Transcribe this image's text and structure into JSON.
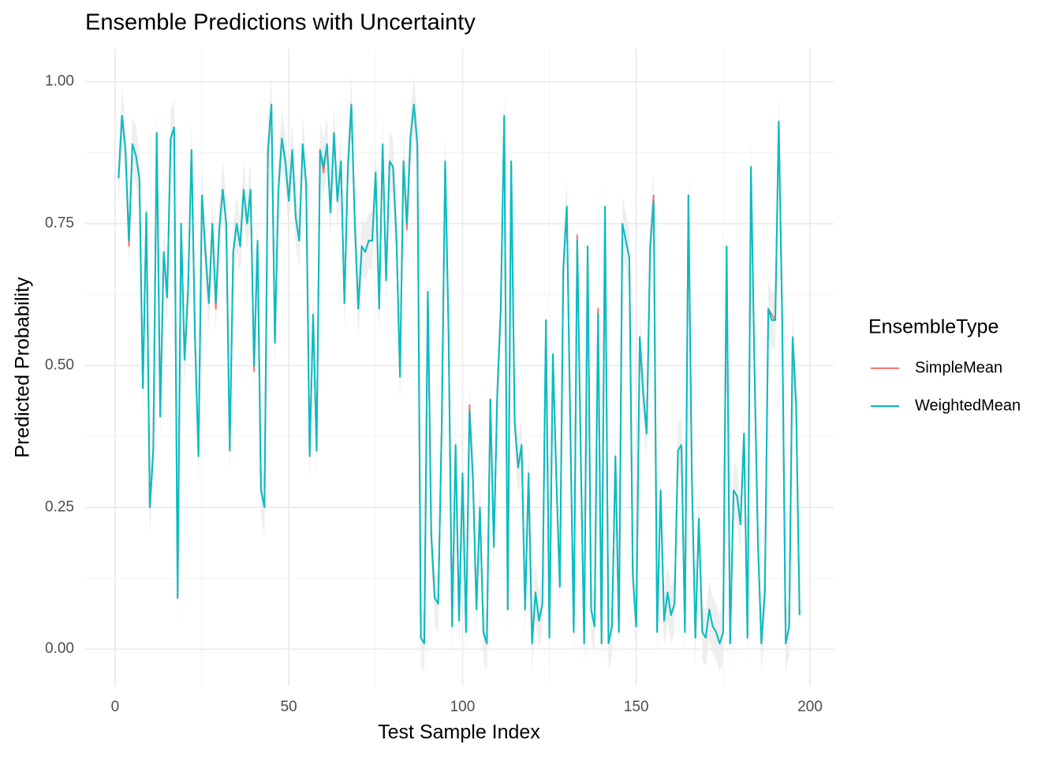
{
  "chart_data": {
    "type": "line",
    "title": "Ensemble Predictions with Uncertainty",
    "x_label": "Test Sample Index",
    "y_label": "Predicted Probability",
    "legend_title": "EnsembleType",
    "legend": "right",
    "grid": true,
    "xlim": [
      -8.6,
      206.8
    ],
    "ylim": [
      -0.065,
      1.058
    ],
    "xticks": [
      0,
      50,
      100,
      150,
      200
    ],
    "xminor": [
      25,
      75,
      125,
      175
    ],
    "yticks": [
      {
        "value": 0,
        "label": "0.00"
      },
      {
        "value": 0.25,
        "label": "0.25"
      },
      {
        "value": 0.5,
        "label": "0.50"
      },
      {
        "value": 0.75,
        "label": "0.75"
      },
      {
        "value": 1,
        "label": "1.00"
      }
    ],
    "yminor": [
      0.125,
      0.375,
      0.625,
      0.875
    ],
    "x": [
      1,
      2,
      3,
      4,
      5,
      6,
      7,
      8,
      9,
      10,
      11,
      12,
      13,
      14,
      15,
      16,
      17,
      18,
      19,
      20,
      21,
      22,
      23,
      24,
      25,
      26,
      27,
      28,
      29,
      30,
      31,
      32,
      33,
      34,
      35,
      36,
      37,
      38,
      39,
      40,
      41,
      42,
      43,
      44,
      45,
      46,
      47,
      48,
      49,
      50,
      51,
      52,
      53,
      54,
      55,
      56,
      57,
      58,
      59,
      60,
      61,
      62,
      63,
      64,
      65,
      66,
      67,
      68,
      69,
      70,
      71,
      72,
      73,
      74,
      75,
      76,
      77,
      78,
      79,
      80,
      81,
      82,
      83,
      84,
      85,
      86,
      87,
      88,
      89,
      90,
      91,
      92,
      93,
      94,
      95,
      96,
      97,
      98,
      99,
      100,
      101,
      102,
      103,
      104,
      105,
      106,
      107,
      108,
      109,
      110,
      111,
      112,
      113,
      114,
      115,
      116,
      117,
      118,
      119,
      120,
      121,
      122,
      123,
      124,
      125,
      126,
      127,
      128,
      129,
      130,
      131,
      132,
      133,
      134,
      135,
      136,
      137,
      138,
      139,
      140,
      141,
      142,
      143,
      144,
      145,
      146,
      147,
      148,
      149,
      150,
      151,
      152,
      153,
      154,
      155,
      156,
      157,
      158,
      159,
      160,
      161,
      162,
      163,
      164,
      165,
      166,
      167,
      168,
      169,
      170,
      171,
      172,
      173,
      174,
      175,
      176,
      177,
      178,
      179,
      180,
      181,
      182,
      183,
      184,
      185,
      186,
      187,
      188,
      189,
      190,
      191,
      192,
      193,
      194,
      195,
      196,
      197
    ],
    "ribbon": {
      "color": "#ebebeb",
      "lower": [
        0.78,
        0.89,
        0.83,
        0.67,
        0.84,
        0.82,
        0.78,
        0.41,
        0.72,
        0.2,
        0.3,
        0.86,
        0.36,
        0.65,
        0.57,
        0.85,
        0.87,
        0.04,
        0.7,
        0.46,
        0.58,
        0.83,
        0.5,
        0.29,
        0.75,
        0.65,
        0.56,
        0.7,
        0.56,
        0.69,
        0.76,
        0.7,
        0.3,
        0.65,
        0.7,
        0.66,
        0.76,
        0.7,
        0.76,
        0.45,
        0.67,
        0.23,
        0.2,
        0.83,
        0.91,
        0.49,
        0.76,
        0.85,
        0.81,
        0.74,
        0.83,
        0.71,
        0.67,
        0.84,
        0.77,
        0.29,
        0.54,
        0.3,
        0.83,
        0.8,
        0.84,
        0.72,
        0.86,
        0.74,
        0.81,
        0.56,
        0.8,
        0.91,
        0.7,
        0.55,
        0.66,
        0.65,
        0.67,
        0.67,
        0.79,
        0.55,
        0.84,
        0.6,
        0.81,
        0.8,
        0.67,
        0.43,
        0.81,
        0.7,
        0.85,
        0.91,
        0.84,
        -0.03,
        -0.04,
        0.58,
        0.15,
        0.04,
        0.03,
        0.34,
        0.81,
        0.5,
        -0.01,
        0.31,
        0.0,
        0.26,
        -0.02,
        0.37,
        0.25,
        0.02,
        0.2,
        -0.02,
        -0.04,
        0.39,
        0.13,
        0.4,
        0.55,
        0.89,
        0.02,
        0.81,
        0.35,
        0.27,
        0.31,
        0.02,
        0.26,
        -0.04,
        0.05,
        0.0,
        0.03,
        0.53,
        -0.03,
        0.47,
        0.25,
        0.06,
        0.62,
        0.73,
        0.35,
        -0.02,
        0.67,
        0.3,
        -0.04,
        0.66,
        0.02,
        -0.01,
        0.54,
        -0.04,
        0.73,
        -0.04,
        -0.01,
        0.29,
        -0.02,
        0.7,
        0.67,
        0.64,
        0.08,
        -0.01,
        0.5,
        0.4,
        0.33,
        0.66,
        0.74,
        -0.02,
        0.23,
        0.0,
        0.05,
        0.01,
        0.03,
        0.3,
        0.31,
        -0.02,
        0.75,
        0.25,
        -0.03,
        0.18,
        -0.02,
        -0.03,
        0.02,
        -0.01,
        -0.02,
        -0.04,
        -0.02,
        0.66,
        -0.04,
        0.23,
        0.22,
        0.17,
        0.33,
        -0.03,
        0.8,
        0.45,
        0.14,
        -0.04,
        0.05,
        0.55,
        0.53,
        0.53,
        0.88,
        0.53,
        -0.04,
        -0.01,
        0.5,
        0.38,
        0.01
      ],
      "upper": [
        0.88,
        0.99,
        0.93,
        0.77,
        0.94,
        0.92,
        0.88,
        0.51,
        0.82,
        0.3,
        0.4,
        0.96,
        0.46,
        0.75,
        0.67,
        0.95,
        0.97,
        0.14,
        0.8,
        0.56,
        0.68,
        0.93,
        0.6,
        0.39,
        0.85,
        0.75,
        0.66,
        0.8,
        0.66,
        0.79,
        0.86,
        0.8,
        0.4,
        0.75,
        0.8,
        0.76,
        0.86,
        0.8,
        0.86,
        0.55,
        0.77,
        0.33,
        0.3,
        0.93,
        1.01,
        0.59,
        0.86,
        0.95,
        0.91,
        0.84,
        0.93,
        0.81,
        0.77,
        0.94,
        0.87,
        0.39,
        0.64,
        0.4,
        0.93,
        0.9,
        0.94,
        0.82,
        0.96,
        0.84,
        0.91,
        0.66,
        0.9,
        1.01,
        0.8,
        0.65,
        0.76,
        0.75,
        0.77,
        0.77,
        0.89,
        0.65,
        0.94,
        0.7,
        0.91,
        0.9,
        0.77,
        0.53,
        0.91,
        0.8,
        0.95,
        1.01,
        0.94,
        0.07,
        0.06,
        0.68,
        0.25,
        0.14,
        0.13,
        0.44,
        0.91,
        0.6,
        0.09,
        0.41,
        0.1,
        0.36,
        0.08,
        0.47,
        0.35,
        0.12,
        0.3,
        0.08,
        0.06,
        0.49,
        0.23,
        0.5,
        0.65,
        0.99,
        0.12,
        0.91,
        0.45,
        0.37,
        0.41,
        0.12,
        0.36,
        0.06,
        0.15,
        0.1,
        0.13,
        0.63,
        0.07,
        0.57,
        0.35,
        0.16,
        0.72,
        0.83,
        0.45,
        0.08,
        0.77,
        0.4,
        0.06,
        0.76,
        0.12,
        0.09,
        0.64,
        0.06,
        0.83,
        0.06,
        0.09,
        0.39,
        0.08,
        0.8,
        0.77,
        0.74,
        0.18,
        0.09,
        0.6,
        0.5,
        0.43,
        0.76,
        0.84,
        0.08,
        0.33,
        0.1,
        0.15,
        0.11,
        0.13,
        0.4,
        0.41,
        0.08,
        0.85,
        0.35,
        0.07,
        0.28,
        0.08,
        0.07,
        0.12,
        0.09,
        0.08,
        0.06,
        0.08,
        0.76,
        0.06,
        0.33,
        0.32,
        0.27,
        0.43,
        0.07,
        0.9,
        0.55,
        0.24,
        0.06,
        0.15,
        0.65,
        0.63,
        0.63,
        0.98,
        0.63,
        0.06,
        0.09,
        0.6,
        0.48,
        0.11
      ]
    },
    "series": [
      {
        "name": "SimpleMean",
        "color": "#F8766D",
        "values": [
          0.83,
          0.94,
          0.88,
          0.71,
          0.89,
          0.87,
          0.83,
          0.46,
          0.77,
          0.25,
          0.35,
          0.91,
          0.41,
          0.7,
          0.62,
          0.9,
          0.92,
          0.09,
          0.75,
          0.51,
          0.63,
          0.88,
          0.55,
          0.34,
          0.8,
          0.7,
          0.61,
          0.75,
          0.6,
          0.74,
          0.81,
          0.75,
          0.35,
          0.7,
          0.75,
          0.71,
          0.81,
          0.75,
          0.81,
          0.49,
          0.72,
          0.28,
          0.25,
          0.88,
          0.96,
          0.54,
          0.81,
          0.9,
          0.86,
          0.79,
          0.88,
          0.76,
          0.72,
          0.89,
          0.82,
          0.34,
          0.59,
          0.35,
          0.88,
          0.84,
          0.89,
          0.77,
          0.91,
          0.79,
          0.86,
          0.61,
          0.85,
          0.96,
          0.75,
          0.6,
          0.71,
          0.7,
          0.72,
          0.72,
          0.84,
          0.6,
          0.89,
          0.65,
          0.86,
          0.85,
          0.72,
          0.48,
          0.86,
          0.74,
          0.9,
          0.96,
          0.89,
          0.02,
          0.01,
          0.63,
          0.2,
          0.09,
          0.08,
          0.39,
          0.86,
          0.55,
          0.04,
          0.36,
          0.05,
          0.31,
          0.03,
          0.43,
          0.3,
          0.07,
          0.25,
          0.03,
          0.01,
          0.44,
          0.18,
          0.45,
          0.6,
          0.94,
          0.07,
          0.86,
          0.4,
          0.32,
          0.36,
          0.07,
          0.31,
          0.01,
          0.1,
          0.05,
          0.08,
          0.58,
          0.02,
          0.52,
          0.3,
          0.11,
          0.67,
          0.78,
          0.4,
          0.03,
          0.73,
          0.35,
          0.01,
          0.71,
          0.07,
          0.04,
          0.6,
          0.01,
          0.78,
          0.01,
          0.04,
          0.34,
          0.03,
          0.75,
          0.72,
          0.69,
          0.13,
          0.04,
          0.55,
          0.45,
          0.38,
          0.71,
          0.8,
          0.03,
          0.28,
          0.05,
          0.1,
          0.06,
          0.08,
          0.35,
          0.36,
          0.03,
          0.8,
          0.3,
          0.02,
          0.23,
          0.03,
          0.02,
          0.07,
          0.04,
          0.03,
          0.01,
          0.03,
          0.71,
          0.01,
          0.28,
          0.27,
          0.22,
          0.38,
          0.02,
          0.85,
          0.5,
          0.19,
          0.01,
          0.1,
          0.6,
          0.59,
          0.58,
          0.93,
          0.58,
          0.01,
          0.04,
          0.55,
          0.43,
          0.06
        ]
      },
      {
        "name": "WeightedMean",
        "color": "#00BFC4",
        "values": [
          0.83,
          0.94,
          0.88,
          0.72,
          0.89,
          0.87,
          0.83,
          0.46,
          0.77,
          0.25,
          0.35,
          0.91,
          0.41,
          0.7,
          0.62,
          0.9,
          0.92,
          0.09,
          0.75,
          0.51,
          0.63,
          0.88,
          0.55,
          0.34,
          0.8,
          0.7,
          0.61,
          0.75,
          0.61,
          0.74,
          0.81,
          0.75,
          0.35,
          0.7,
          0.75,
          0.71,
          0.81,
          0.75,
          0.81,
          0.5,
          0.72,
          0.28,
          0.25,
          0.88,
          0.96,
          0.54,
          0.81,
          0.9,
          0.86,
          0.79,
          0.88,
          0.76,
          0.72,
          0.89,
          0.82,
          0.34,
          0.59,
          0.35,
          0.88,
          0.85,
          0.89,
          0.77,
          0.91,
          0.79,
          0.86,
          0.61,
          0.85,
          0.96,
          0.75,
          0.6,
          0.71,
          0.7,
          0.72,
          0.72,
          0.84,
          0.6,
          0.89,
          0.65,
          0.86,
          0.85,
          0.72,
          0.48,
          0.86,
          0.75,
          0.9,
          0.96,
          0.89,
          0.02,
          0.01,
          0.63,
          0.2,
          0.09,
          0.08,
          0.39,
          0.86,
          0.55,
          0.04,
          0.36,
          0.05,
          0.31,
          0.03,
          0.42,
          0.3,
          0.07,
          0.25,
          0.03,
          0.01,
          0.44,
          0.18,
          0.45,
          0.6,
          0.94,
          0.07,
          0.86,
          0.4,
          0.32,
          0.36,
          0.07,
          0.31,
          0.01,
          0.1,
          0.05,
          0.08,
          0.58,
          0.02,
          0.52,
          0.3,
          0.11,
          0.67,
          0.78,
          0.4,
          0.03,
          0.72,
          0.35,
          0.01,
          0.71,
          0.07,
          0.04,
          0.59,
          0.01,
          0.78,
          0.01,
          0.04,
          0.34,
          0.03,
          0.75,
          0.72,
          0.69,
          0.13,
          0.04,
          0.55,
          0.45,
          0.38,
          0.71,
          0.79,
          0.03,
          0.28,
          0.05,
          0.1,
          0.06,
          0.08,
          0.35,
          0.36,
          0.03,
          0.8,
          0.3,
          0.02,
          0.23,
          0.03,
          0.02,
          0.07,
          0.04,
          0.03,
          0.01,
          0.03,
          0.71,
          0.01,
          0.28,
          0.27,
          0.22,
          0.38,
          0.02,
          0.85,
          0.5,
          0.19,
          0.01,
          0.1,
          0.6,
          0.58,
          0.58,
          0.93,
          0.58,
          0.01,
          0.04,
          0.55,
          0.43,
          0.06
        ]
      }
    ]
  }
}
